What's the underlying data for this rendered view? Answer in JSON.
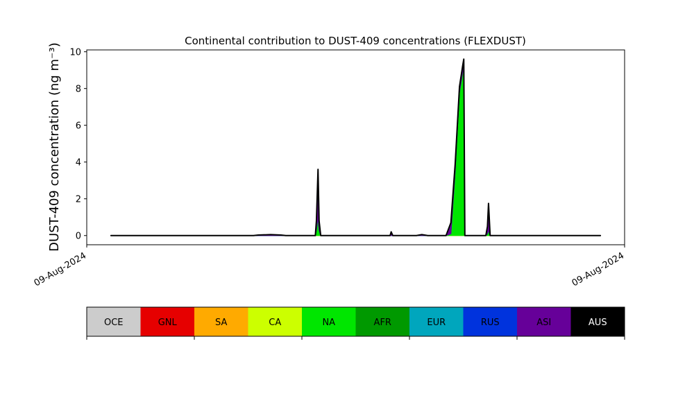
{
  "chart_data": {
    "type": "stacked-area",
    "title": "Continental contribution to DUST-409 concentrations (FLEXDUST)",
    "y_label": "DUST-409 concentration (ng m⁻³)",
    "x": [
      0.045,
      0.31,
      0.319,
      0.342,
      0.361,
      0.37,
      0.425,
      0.427,
      0.43,
      0.432,
      0.435,
      0.561,
      0.564,
      0.566,
      0.569,
      0.613,
      0.623,
      0.634,
      0.668,
      0.677,
      0.685,
      0.693,
      0.699,
      0.701,
      0.703,
      0.742,
      0.745,
      0.747,
      0.75,
      0.955
    ],
    "xlim": [
      0,
      1
    ],
    "xticks": [
      {
        "value": 0,
        "label": "09-Aug-2024"
      },
      {
        "value": 1,
        "label": "09-Aug-2024"
      }
    ],
    "ylim": [
      -0.5,
      10.1
    ],
    "yticks": [
      0,
      2,
      4,
      6,
      8,
      10
    ],
    "series": [
      {
        "name": "OCE",
        "color": "#cccccc",
        "values": [
          0,
          0,
          0,
          0,
          0,
          0,
          0,
          0,
          0,
          0,
          0,
          0,
          0,
          0,
          0,
          0,
          0,
          0,
          0,
          0,
          0,
          0,
          0,
          0,
          0,
          0,
          0,
          0,
          0,
          0
        ]
      },
      {
        "name": "GNL",
        "color": "#e60000",
        "values": [
          0,
          0,
          0,
          0,
          0,
          0,
          0,
          0,
          0,
          0,
          0,
          0,
          0,
          0,
          0,
          0,
          0,
          0,
          0,
          0,
          0,
          0,
          0,
          0,
          0,
          0,
          0,
          0,
          0,
          0
        ]
      },
      {
        "name": "SA",
        "color": "#ffaa00",
        "values": [
          0,
          0,
          0,
          0,
          0,
          0,
          0,
          0,
          0,
          0,
          0,
          0,
          0,
          0,
          0,
          0,
          0,
          0,
          0,
          0,
          0,
          0,
          0,
          0,
          0,
          0,
          0,
          0,
          0,
          0
        ]
      },
      {
        "name": "CA",
        "color": "#ccff00",
        "values": [
          0,
          0,
          0,
          0,
          0,
          0,
          0,
          0,
          0,
          0,
          0,
          0,
          0,
          0,
          0,
          0,
          0,
          0,
          0,
          0,
          0,
          0,
          0,
          0,
          0,
          0,
          0,
          0,
          0,
          0
        ]
      },
      {
        "name": "NA",
        "color": "#00e600",
        "values": [
          0,
          0,
          0,
          0,
          0,
          0,
          0,
          0.3,
          1.0,
          0.3,
          0,
          0,
          0,
          0,
          0,
          0,
          0,
          0,
          0,
          0.1,
          3.5,
          7.8,
          8.9,
          9.2,
          0,
          0,
          0.1,
          0.3,
          0,
          0
        ]
      },
      {
        "name": "AFR",
        "color": "#009900",
        "values": [
          0,
          0,
          0,
          0,
          0,
          0,
          0,
          0,
          0,
          0,
          0,
          0,
          0,
          0,
          0,
          0,
          0,
          0,
          0,
          0,
          0,
          0,
          0,
          0,
          0,
          0,
          0,
          0,
          0,
          0
        ]
      },
      {
        "name": "EUR",
        "color": "#00a6bd",
        "values": [
          0,
          0,
          0,
          0,
          0,
          0,
          0,
          0,
          0,
          0,
          0,
          0,
          0,
          0,
          0,
          0,
          0,
          0,
          0,
          0,
          0,
          0,
          0,
          0,
          0,
          0,
          0,
          0,
          0,
          0
        ]
      },
      {
        "name": "RUS",
        "color": "#0033dd",
        "values": [
          0,
          0,
          0,
          0,
          0,
          0,
          0,
          0,
          0,
          0,
          0,
          0,
          0,
          0,
          0,
          0,
          0,
          0,
          0,
          0,
          0,
          0,
          0,
          0,
          0,
          0,
          0,
          0,
          0,
          0
        ]
      },
      {
        "name": "ASI",
        "color": "#660099",
        "values": [
          0,
          0,
          0.03,
          0.05,
          0.03,
          0,
          0,
          0.5,
          2.6,
          0.5,
          0,
          0,
          0,
          0.2,
          0,
          0,
          0.05,
          0,
          0,
          0.6,
          0.4,
          0.3,
          0.35,
          0.4,
          0,
          0,
          0.4,
          1.45,
          0,
          0
        ]
      },
      {
        "name": "AUS",
        "color": "#000000",
        "values": [
          0,
          0,
          0,
          0,
          0,
          0,
          0,
          0,
          0,
          0,
          0,
          0,
          0,
          0,
          0,
          0,
          0,
          0,
          0,
          0,
          0,
          0,
          0,
          0,
          0,
          0,
          0,
          0,
          0,
          0
        ]
      }
    ]
  }
}
